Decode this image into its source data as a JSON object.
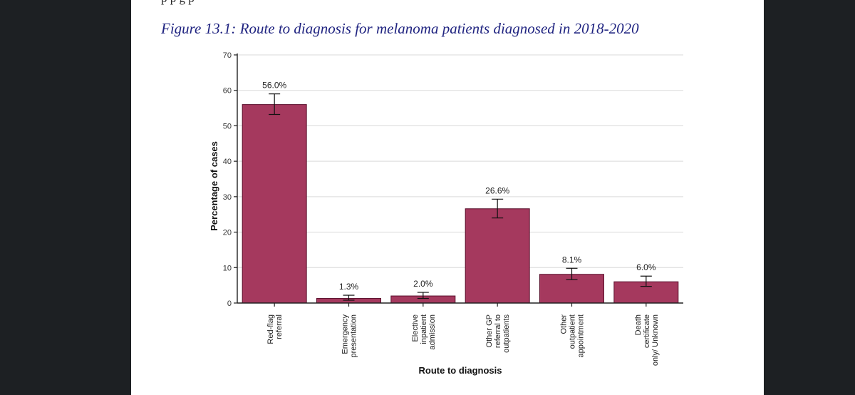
{
  "document": {
    "cut_off_text": "p                                       p                          g    p",
    "figure_caption": "Figure 13.1: Route to diagnosis for melanoma patients diagnosed in 2018-2020"
  },
  "colors": {
    "bar": "#a5395e",
    "viewer_background": "#1d2023",
    "caption": "#1f2380"
  },
  "chart_data": {
    "type": "bar",
    "title": "",
    "xlabel": "Route to diagnosis",
    "ylabel": "Percentage of cases",
    "ylim": [
      0,
      70
    ],
    "yticks": [
      0,
      10,
      20,
      30,
      40,
      50,
      60,
      70
    ],
    "grid": true,
    "categories": [
      [
        "Red-flag",
        "referral"
      ],
      [
        "Emergency",
        "presentation"
      ],
      [
        "Elective",
        "inpatient",
        "admission"
      ],
      [
        "Other GP",
        "referral to",
        "outpatients"
      ],
      [
        "Other",
        "outpatient",
        "appointment"
      ],
      [
        "Death",
        "certificate",
        "only/ Unknown"
      ]
    ],
    "values": [
      56.0,
      1.3,
      2.0,
      26.6,
      8.1,
      6.0
    ],
    "data_labels": [
      "56.0%",
      "1.3%",
      "2.0%",
      "26.6%",
      "8.1%",
      "6.0%"
    ],
    "error_bars": [
      [
        53.2,
        59.0
      ],
      [
        0.8,
        2.2
      ],
      [
        1.3,
        3.0
      ],
      [
        24.0,
        29.3
      ],
      [
        6.6,
        9.8
      ],
      [
        4.7,
        7.6
      ]
    ]
  }
}
